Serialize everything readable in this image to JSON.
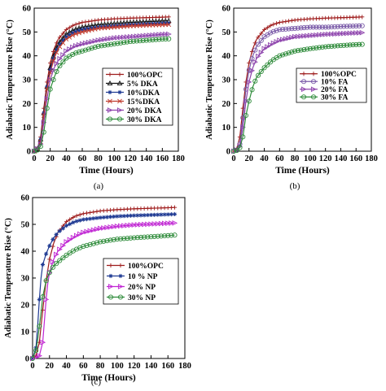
{
  "chart_data": [
    {
      "type": "line",
      "panel_label": "(a)",
      "xlabel": "Time (Hours)",
      "ylabel": "Adiabatic Temperature Rise (°C)",
      "xlim": [
        0,
        180
      ],
      "ylim": [
        0,
        60
      ],
      "xticks": [
        "0",
        "20",
        "40",
        "60",
        "80",
        "100",
        "120",
        "140",
        "160",
        "180"
      ],
      "yticks": [
        "0",
        "10",
        "20",
        "30",
        "40",
        "50",
        "60"
      ],
      "legend_position": "center-right",
      "series": [
        {
          "name": "100%OPC",
          "color": "#9e1b1b",
          "marker": "plus",
          "x": [
            0,
            4,
            8,
            12,
            16,
            20,
            25,
            30,
            40,
            50,
            60,
            80,
            100,
            120,
            140,
            160,
            168
          ],
          "y": [
            0,
            1,
            6,
            18,
            29,
            37,
            43,
            47,
            51,
            53,
            54,
            55,
            55.5,
            55.8,
            56,
            56.2,
            56.3
          ]
        },
        {
          "name": "5% DKA",
          "color": "#111111",
          "marker": "triangle",
          "x": [
            0,
            4,
            8,
            12,
            16,
            20,
            25,
            30,
            40,
            50,
            60,
            80,
            100,
            120,
            140,
            160,
            168
          ],
          "y": [
            0,
            1,
            5,
            16,
            27,
            35,
            41,
            45,
            49,
            51,
            52,
            53,
            53.5,
            54,
            54.3,
            54.6,
            54.7
          ]
        },
        {
          "name": "10%DKA",
          "color": "#1f3a93",
          "marker": "star",
          "x": [
            0,
            4,
            8,
            12,
            16,
            20,
            25,
            30,
            40,
            50,
            60,
            80,
            100,
            120,
            140,
            160,
            168
          ],
          "y": [
            0,
            1,
            5,
            16,
            27,
            34,
            40,
            44,
            48,
            50,
            51,
            52,
            52.5,
            53,
            53.3,
            53.6,
            53.7
          ]
        },
        {
          "name": "15%DKA",
          "color": "#c0392b",
          "marker": "x",
          "x": [
            0,
            4,
            8,
            12,
            16,
            20,
            25,
            30,
            40,
            50,
            60,
            80,
            100,
            120,
            140,
            160,
            168
          ],
          "y": [
            0,
            1,
            4,
            15,
            26,
            33,
            39,
            43,
            47,
            49,
            50,
            51.5,
            52,
            52.5,
            52.8,
            53,
            53.1
          ]
        },
        {
          "name": "20% DKA",
          "color": "#8e44ad",
          "marker": "triangle-right",
          "x": [
            0,
            4,
            8,
            12,
            16,
            20,
            25,
            30,
            40,
            50,
            60,
            80,
            100,
            120,
            140,
            160,
            168
          ],
          "y": [
            0,
            1,
            3,
            12,
            22,
            30,
            35,
            38,
            42,
            44,
            45,
            46.5,
            47.5,
            48,
            48.5,
            49,
            49.1
          ]
        },
        {
          "name": "30% DKA",
          "color": "#2e8b3a",
          "marker": "circle",
          "x": [
            0,
            4,
            8,
            12,
            16,
            20,
            25,
            30,
            40,
            50,
            60,
            80,
            100,
            120,
            140,
            160,
            168
          ],
          "y": [
            0,
            0.5,
            2,
            8,
            18,
            26,
            31,
            35,
            39,
            41,
            42,
            44,
            45,
            46,
            46.5,
            47,
            47.1
          ]
        }
      ]
    },
    {
      "type": "line",
      "panel_label": "(b)",
      "xlabel": "Time (Hours)",
      "ylabel": "Adiabatic Temperature Rise (°C)",
      "xlim": [
        0,
        180
      ],
      "ylim": [
        0,
        60
      ],
      "xticks": [
        "0",
        "20",
        "40",
        "60",
        "80",
        "100",
        "120",
        "140",
        "160",
        "180"
      ],
      "yticks": [
        "0",
        "10",
        "20",
        "30",
        "40",
        "50",
        "60"
      ],
      "legend_position": "center-right",
      "series": [
        {
          "name": "100%OPC",
          "color": "#9e1b1b",
          "marker": "plus",
          "x": [
            0,
            4,
            8,
            12,
            16,
            20,
            25,
            30,
            40,
            50,
            60,
            80,
            100,
            120,
            140,
            160,
            168
          ],
          "y": [
            0,
            1,
            6,
            18,
            29,
            37,
            43,
            47,
            51,
            53,
            54,
            55,
            55.5,
            55.8,
            56,
            56.2,
            56.3
          ]
        },
        {
          "name": "10% FA",
          "color": "#7a5aa8",
          "marker": "circle",
          "x": [
            0,
            4,
            8,
            12,
            16,
            20,
            25,
            30,
            40,
            50,
            60,
            80,
            100,
            120,
            140,
            160,
            168
          ],
          "y": [
            0,
            0.5,
            3,
            14,
            26,
            34,
            40,
            44,
            48,
            50,
            51,
            51.5,
            52,
            52,
            52.3,
            52.5,
            52.6
          ]
        },
        {
          "name": "20% FA",
          "color": "#8e44ad",
          "marker": "triangle-right",
          "x": [
            0,
            4,
            8,
            12,
            16,
            20,
            25,
            30,
            40,
            50,
            60,
            80,
            100,
            120,
            140,
            160,
            168
          ],
          "y": [
            0,
            0.5,
            2,
            10,
            21,
            29,
            35,
            39,
            43,
            45,
            46.5,
            48,
            48.5,
            49,
            49.3,
            49.6,
            49.7
          ]
        },
        {
          "name": "30% FA",
          "color": "#2e8b3a",
          "marker": "circle",
          "x": [
            0,
            4,
            8,
            12,
            16,
            20,
            25,
            30,
            40,
            50,
            60,
            80,
            100,
            120,
            140,
            160,
            168
          ],
          "y": [
            0,
            0.3,
            1.5,
            6,
            15,
            21,
            27,
            31,
            35,
            38,
            40,
            42,
            43,
            43.8,
            44.3,
            44.7,
            44.8
          ]
        }
      ]
    },
    {
      "type": "line",
      "panel_label": "(c)",
      "xlabel": "Time (Hours)",
      "ylabel": "Adiabatic Temperature Rise (°C)",
      "xlim": [
        0,
        180
      ],
      "ylim": [
        0,
        60
      ],
      "xticks": [
        "0",
        "20",
        "40",
        "60",
        "80",
        "100",
        "120",
        "140",
        "160",
        "180"
      ],
      "yticks": [
        "0",
        "10",
        "20",
        "30",
        "40",
        "50",
        "60"
      ],
      "legend_position": "center-right",
      "series": [
        {
          "name": "100%OPC",
          "color": "#9e1b1b",
          "marker": "plus",
          "x": [
            0,
            4,
            8,
            12,
            16,
            20,
            25,
            30,
            40,
            50,
            60,
            80,
            100,
            120,
            140,
            160,
            168
          ],
          "y": [
            0,
            1,
            6,
            18,
            29,
            37,
            43,
            47,
            51,
            53,
            54,
            55,
            55.5,
            55.8,
            56,
            56.2,
            56.3
          ]
        },
        {
          "name": "10 % NP",
          "color": "#1f3a93",
          "marker": "star",
          "x": [
            0,
            4,
            6,
            8,
            10,
            12,
            16,
            20,
            25,
            30,
            40,
            50,
            60,
            80,
            100,
            120,
            140,
            160,
            168
          ],
          "y": [
            0,
            4,
            12,
            22,
            30,
            35,
            39,
            42,
            45,
            47,
            49.5,
            51,
            51.8,
            52.5,
            53,
            53.3,
            53.5,
            53.7,
            53.8
          ]
        },
        {
          "name": "20% NP",
          "color": "#c026d3",
          "marker": "triangle-right",
          "x": [
            0,
            8,
            12,
            14,
            16,
            18,
            20,
            25,
            30,
            40,
            50,
            60,
            80,
            100,
            120,
            140,
            160,
            168
          ],
          "y": [
            0,
            1,
            6,
            14,
            22,
            28,
            32,
            37,
            40,
            43.5,
            45.5,
            47,
            48.5,
            49.3,
            49.8,
            50.1,
            50.4,
            50.5
          ]
        },
        {
          "name": "30% NP",
          "color": "#2e8b3a",
          "marker": "circle",
          "x": [
            0,
            4,
            6,
            8,
            10,
            12,
            16,
            20,
            25,
            30,
            40,
            50,
            60,
            80,
            100,
            120,
            140,
            160,
            168
          ],
          "y": [
            0,
            3,
            7,
            12,
            17,
            23,
            29,
            32,
            34.5,
            36,
            38.5,
            40.5,
            41.8,
            43.5,
            44.5,
            45,
            45.4,
            45.8,
            46
          ]
        }
      ]
    }
  ]
}
